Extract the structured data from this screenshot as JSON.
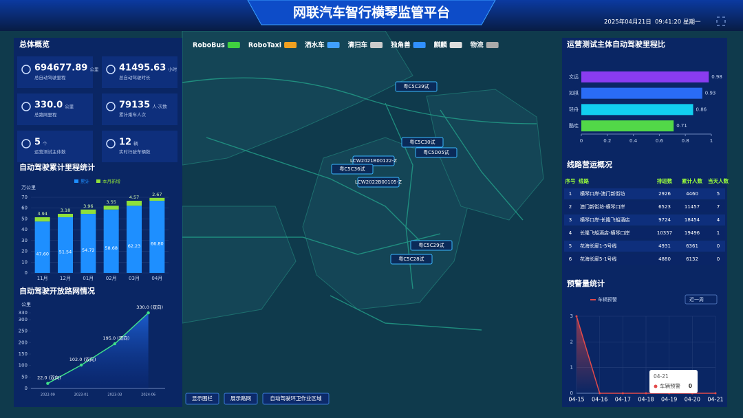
{
  "header": {
    "title": "网联汽车智行横琴监管平台",
    "date": "2025年04月21日",
    "time": "09:41:20",
    "weekday": "星期一"
  },
  "vehicle_types": [
    "RoboBus",
    "RoboTaxi",
    "洒水车",
    "清扫车",
    "独角兽",
    "麒麟",
    "物流"
  ],
  "overview": {
    "title": "总体概览",
    "items": [
      {
        "value": "694677.89",
        "unit": "公里",
        "label": "总自动驾驶里程"
      },
      {
        "value": "41495.63",
        "unit": "小时",
        "label": "总自动驾驶时长"
      },
      {
        "value": "330.0",
        "unit": "公里",
        "label": "总路网里程"
      },
      {
        "value": "79135",
        "unit": "人·次数",
        "label": "累计乘车人次"
      },
      {
        "value": "5",
        "unit": "个",
        "label": "运营测试主体数"
      },
      {
        "value": "12",
        "unit": "辆",
        "label": "实时行驶车辆数"
      }
    ]
  },
  "map": {
    "vehicles": [
      "粤C5C39试",
      "粤C5C30试",
      "粤C5D05试",
      "LCW2021B00122-Z",
      "粤C5C36试",
      "LCW2022B00105-Z",
      "粤C5C29试",
      "粤C5C28试"
    ],
    "buttons": [
      "显示围栏",
      "展示路网",
      "自动驾驶环卫作业区域"
    ]
  },
  "route_table": {
    "title": "线路营运概况",
    "headers": [
      "序号",
      "线路",
      "排班数",
      "累计人数",
      "当天人数"
    ],
    "rows": [
      [
        "1",
        "横琴口岸-澳门新街坊",
        "2926",
        "4460",
        "5"
      ],
      [
        "2",
        "澳门新街坊-横琴口岸",
        "6523",
        "11457",
        "7"
      ],
      [
        "3",
        "横琴口岸-长隆飞船酒店",
        "9724",
        "18454",
        "4"
      ],
      [
        "4",
        "长隆飞船酒店-横琴口岸",
        "10357",
        "19496",
        "1"
      ],
      [
        "5",
        "花海长廊1-5号线",
        "4931",
        "6361",
        "0"
      ],
      [
        "6",
        "花海长廊5-1号线",
        "4880",
        "6132",
        "0"
      ]
    ]
  },
  "chart_data": [
    {
      "type": "bar",
      "stacked": true,
      "title": "自动驾驶累计里程统计",
      "y_label": "万公里",
      "categories": [
        "11月",
        "12月",
        "01月",
        "02月",
        "03月",
        "04月"
      ],
      "series": [
        {
          "name": "累计",
          "color": "#1e8fff",
          "values": [
            47.6,
            51.54,
            54.72,
            58.68,
            62.23,
            66.8
          ],
          "value_labels": [
            "47.60",
            "51.54",
            "54.72",
            "58.68",
            "62.23",
            "66.80"
          ]
        },
        {
          "name": "本月新增",
          "color": "#8fe03a",
          "values": [
            3.94,
            3.18,
            3.96,
            3.55,
            4.57,
            2.67
          ],
          "value_labels": [
            "3.94",
            "3.18",
            "3.96",
            "3.55",
            "4.57",
            "2.67"
          ]
        }
      ],
      "ylim": [
        0,
        70
      ],
      "yticks": [
        0,
        10,
        20,
        30,
        40,
        50,
        60,
        70
      ],
      "grid": true
    },
    {
      "type": "line",
      "title": "自动驾驶开放路网情况",
      "y_label": "公里",
      "categories": [
        "2022-09",
        "2023-01",
        "2023-03",
        "2024-06"
      ],
      "values": [
        22,
        102,
        195,
        330
      ],
      "value_labels": [
        "22.0 (双向)",
        "102.0 (双向)",
        "195.0 (双向)",
        "330.0 (双向)"
      ],
      "color": "#3fe08a",
      "ylim": [
        0,
        330
      ],
      "yticks": [
        0,
        50,
        100,
        150,
        200,
        250,
        300,
        330
      ],
      "area": true
    },
    {
      "type": "bar",
      "horizontal": true,
      "title": "运营测试主体自动驾驶里程比",
      "categories": [
        "文远",
        "如祺",
        "轻舟",
        "酷哇"
      ],
      "values": [
        0.98,
        0.93,
        0.86,
        0.71
      ],
      "colors": [
        "#8a3cf0",
        "#2a6cf5",
        "#12d0f0",
        "#52d848"
      ],
      "xlim": [
        0,
        1
      ],
      "xticks": [
        0,
        0.2,
        0.4,
        0.6,
        0.8,
        1
      ]
    },
    {
      "type": "line",
      "title": "预警量统计",
      "categories": [
        "04-15",
        "04-16",
        "04-17",
        "04-18",
        "04-19",
        "04-20",
        "04-21"
      ],
      "series": [
        {
          "name": "车辆预警",
          "color": "#e24a4a",
          "values": [
            3,
            0,
            0,
            0,
            0,
            0,
            0
          ]
        }
      ],
      "ylim": [
        0,
        3
      ],
      "yticks": [
        0,
        1,
        2,
        3
      ],
      "grid": true,
      "area": true,
      "filter": "近一周",
      "tooltip": {
        "title": "04-21",
        "series": "车辆预警",
        "value": "0"
      }
    }
  ]
}
